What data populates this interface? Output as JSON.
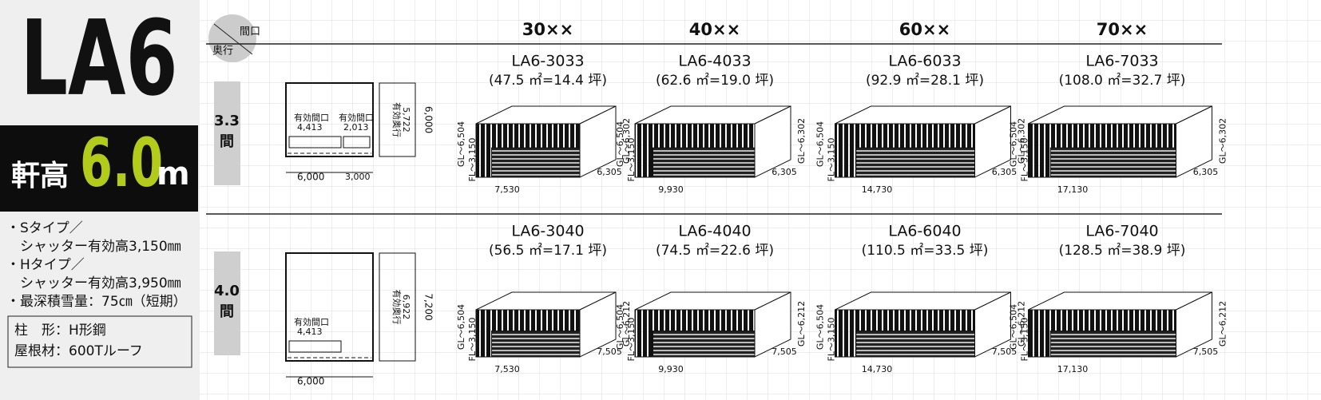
{
  "sidebar": {
    "model": "LA6",
    "eave_label": "軒高",
    "eave_value": "6.0",
    "eave_unit": "m",
    "specs": [
      "・Sタイプ／",
      "　シャッター有効高3,150㎜",
      "・Hタイプ／",
      "　シャッター有効高3,950㎜",
      "・最深積雪量：75㎝（短期）"
    ],
    "materials": [
      "柱　形：H形鋼",
      "屋根材：600Tルーフ"
    ]
  },
  "header": {
    "corner_top": "間口",
    "corner_bottom": "奥行",
    "columns": [
      "30××",
      "40××",
      "60××",
      "70××"
    ]
  },
  "rows": [
    {
      "depth": "3.3",
      "unit": "間",
      "plan": {
        "opening_label_1": "有効間口",
        "opening_1": "4,413",
        "opening_label_2": "有効間口",
        "opening_2": "2,013",
        "depth_label": "有効奥行",
        "effective_depth": "5,722",
        "depth": "6,000",
        "width_1": "6,000",
        "width_2": "3,000"
      },
      "models": [
        {
          "name": "LA6-3033",
          "area": "(47.5 ㎡=14.4 坪)",
          "gl_left": "GL～6,504",
          "fl": "FL～3,150",
          "gl_right": "GL～6,302",
          "width": "7,530",
          "depth": "6,305"
        },
        {
          "name": "LA6-4033",
          "area": "(62.6 ㎡=19.0 坪)",
          "gl_left": "GL～6,504",
          "fl": "FL～3,150",
          "gl_right": "GL～6,302",
          "width": "9,930",
          "depth": "6,305"
        },
        {
          "name": "LA6-6033",
          "area": "(92.9 ㎡=28.1 坪)",
          "gl_left": "GL～6,504",
          "fl": "FL～3,150",
          "gl_right": "GL～6,302",
          "width": "14,730",
          "depth": "6,305"
        },
        {
          "name": "LA6-7033",
          "area": "(108.0 ㎡=32.7 坪)",
          "gl_left": "GL～6,504",
          "fl": "FL～3,150",
          "gl_right": "GL～6,302",
          "width": "17,130",
          "depth": "6,305"
        }
      ]
    },
    {
      "depth": "4.0",
      "unit": "間",
      "plan": {
        "opening_label_1": "有効間口",
        "opening_1": "4,413",
        "depth_label": "有効奥行",
        "effective_depth": "6,922",
        "depth": "7,200",
        "width_1": "6,000"
      },
      "models": [
        {
          "name": "LA6-3040",
          "area": "(56.5 ㎡=17.1 坪)",
          "gl_left": "GL～6,504",
          "fl": "FL～3,150",
          "gl_right": "GL～6,212",
          "width": "7,530",
          "depth": "7,505"
        },
        {
          "name": "LA6-4040",
          "area": "(74.5 ㎡=22.6 坪)",
          "gl_left": "GL～6,504",
          "fl": "FL～3,150",
          "gl_right": "GL～6,212",
          "width": "9,930",
          "depth": "7,505"
        },
        {
          "name": "LA6-6040",
          "area": "(110.5 ㎡=33.5 坪)",
          "gl_left": "GL～6,504",
          "fl": "FL～3,150",
          "gl_right": "GL～6,212",
          "width": "14,730",
          "depth": "7,505"
        },
        {
          "name": "LA6-7040",
          "area": "(128.5 ㎡=38.9 坪)",
          "gl_left": "GL～6,504",
          "fl": "FL～3,150",
          "gl_right": "GL～6,212",
          "width": "17,130",
          "depth": "7,505"
        }
      ]
    }
  ]
}
